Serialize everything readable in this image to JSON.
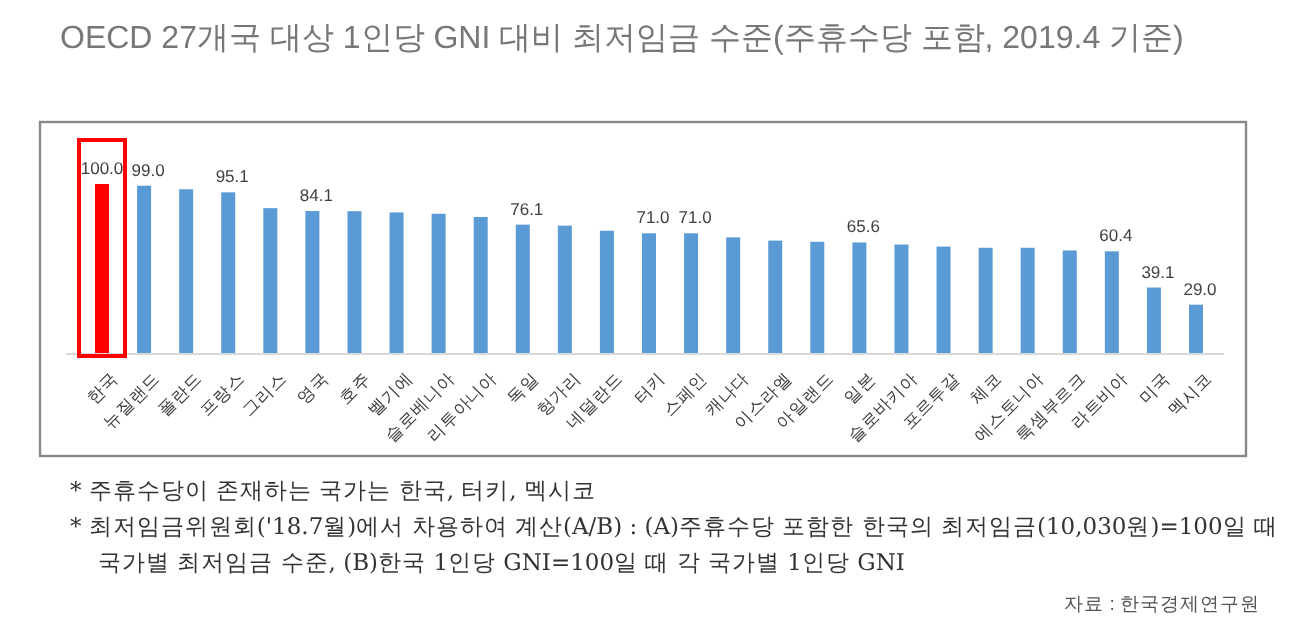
{
  "chart_data": {
    "type": "bar",
    "title": "OECD 27개국 대상 1인당 GNI 대비 최저임금 수준(주휴수당 포함, 2019.4 기준)",
    "categories": [
      "한국",
      "뉴질랜드",
      "폴란드",
      "프랑스",
      "그리스",
      "영국",
      "호주",
      "벨기에",
      "슬로베니아",
      "리투아니아",
      "독일",
      "헝가리",
      "네덜란드",
      "터키",
      "스페인",
      "캐나다",
      "이스라엘",
      "아일랜드",
      "일본",
      "슬로바키아",
      "포르투갈",
      "체코",
      "에스토니아",
      "룩셈부르크",
      "라트비아",
      "미국",
      "멕시코"
    ],
    "values": [
      100.0,
      99.0,
      96.9,
      95.1,
      85.8,
      84.1,
      84.0,
      83.3,
      82.5,
      80.6,
      76.1,
      75.5,
      72.5,
      71.0,
      71.0,
      68.6,
      66.7,
      66.0,
      65.6,
      64.4,
      63.2,
      62.5,
      62.5,
      60.9,
      60.4,
      39.1,
      29.0
    ],
    "colors": [
      "#ff0000",
      "#5b9bd5",
      "#5b9bd5",
      "#5b9bd5",
      "#5b9bd5",
      "#5b9bd5",
      "#5b9bd5",
      "#5b9bd5",
      "#5b9bd5",
      "#5b9bd5",
      "#5b9bd5",
      "#5b9bd5",
      "#5b9bd5",
      "#5b9bd5",
      "#5b9bd5",
      "#5b9bd5",
      "#5b9bd5",
      "#5b9bd5",
      "#5b9bd5",
      "#5b9bd5",
      "#5b9bd5",
      "#5b9bd5",
      "#5b9bd5",
      "#5b9bd5",
      "#5b9bd5",
      "#5b9bd5",
      "#5b9bd5"
    ],
    "value_labels": [
      "100.0",
      "99.0",
      null,
      "95.1",
      null,
      "84.1",
      null,
      null,
      null,
      null,
      "76.1",
      null,
      null,
      "71.0",
      "71.0",
      null,
      null,
      null,
      "65.6",
      null,
      null,
      null,
      null,
      null,
      "60.4",
      "39.1",
      "29.0"
    ],
    "annotations": [
      "* 주휴수당이 존재하는 국가는 한국, 터키, 멕시코",
      "* 최저임금위원회('18.7월)에서 차용하여 계산(A/B) : (A)주휴수당 포함한 한국의 최저임금(10,030원)=100일 때 국가별 최저임금 수준, (B)한국 1인당 GNI=100일 때 각 국가별 1인당 GNI",
      "자료 : 한국경제연구원"
    ]
  }
}
